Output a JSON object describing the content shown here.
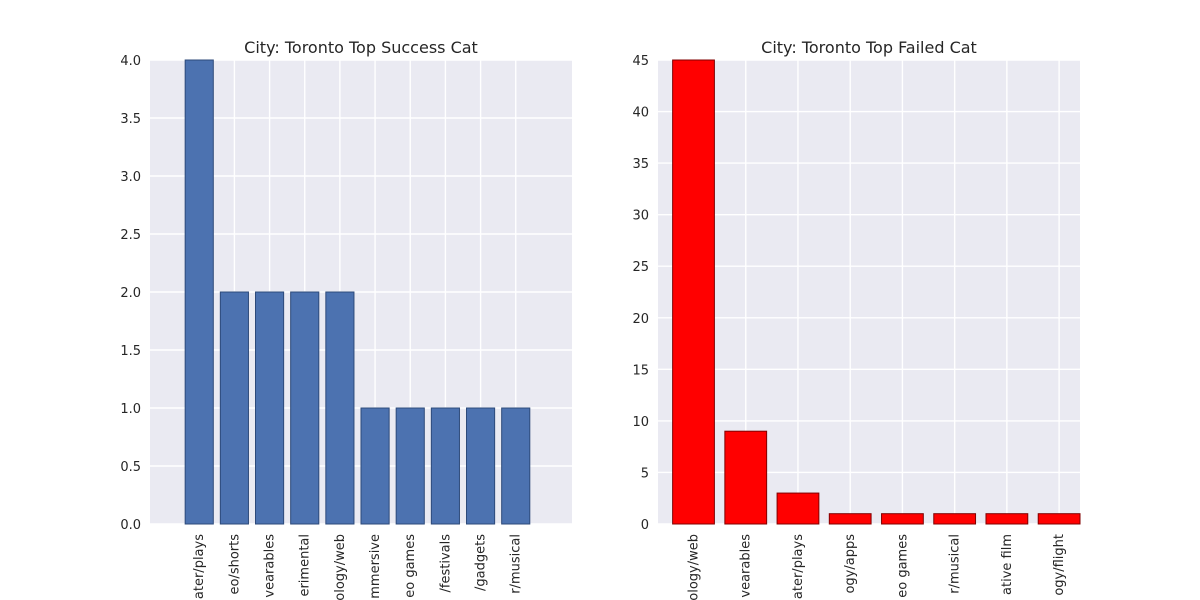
{
  "chart_data": [
    {
      "type": "bar",
      "title": "City: Toronto Top Success Cat",
      "categories": [
        "theater/plays",
        "film & video/shorts",
        "technology/wearables",
        "music/experimental",
        "technology/web",
        "theater/immersive",
        "games/video games",
        "film & video/festivals",
        "technology/gadgets",
        "theater/musical"
      ],
      "tick_labels": [
        "ater/plays",
        "eo/shorts",
        "vearables",
        "erimental",
        "ology/web",
        "mmersive",
        "eo games",
        "/festivals",
        "/gadgets",
        "r/musical"
      ],
      "values": [
        4,
        2,
        2,
        2,
        2,
        1,
        1,
        1,
        1,
        1
      ],
      "ylim": [
        0,
        4.0
      ],
      "yticks": [
        "0.0",
        "0.5",
        "1.0",
        "1.5",
        "2.0",
        "2.5",
        "3.0",
        "3.5",
        "4.0"
      ],
      "xlim": [
        -1,
        11
      ],
      "color": "#4c72b0",
      "edge_color": "#2d4a7a",
      "grid": true
    },
    {
      "type": "bar",
      "title": "City: Toronto Top Failed Cat",
      "categories": [
        "technology/web",
        "technology/wearables",
        "theater/plays",
        "technology/apps",
        "games/video games",
        "theater/musical",
        "film & video/narrative film",
        "technology/flight"
      ],
      "tick_labels": [
        "ology/web",
        "vearables",
        "ater/plays",
        "ogy/apps",
        "eo games",
        "r/musical",
        "ative film",
        "ogy/flight"
      ],
      "values": [
        45,
        9,
        3,
        1,
        1,
        1,
        1,
        1
      ],
      "ylim": [
        0,
        45
      ],
      "yticks": [
        "0",
        "5",
        "10",
        "15",
        "20",
        "25",
        "30",
        "35",
        "40",
        "45"
      ],
      "xlim": [
        -0.28,
        7.8
      ],
      "color": "#ff0000",
      "edge_color": "#800000",
      "grid": true
    }
  ]
}
